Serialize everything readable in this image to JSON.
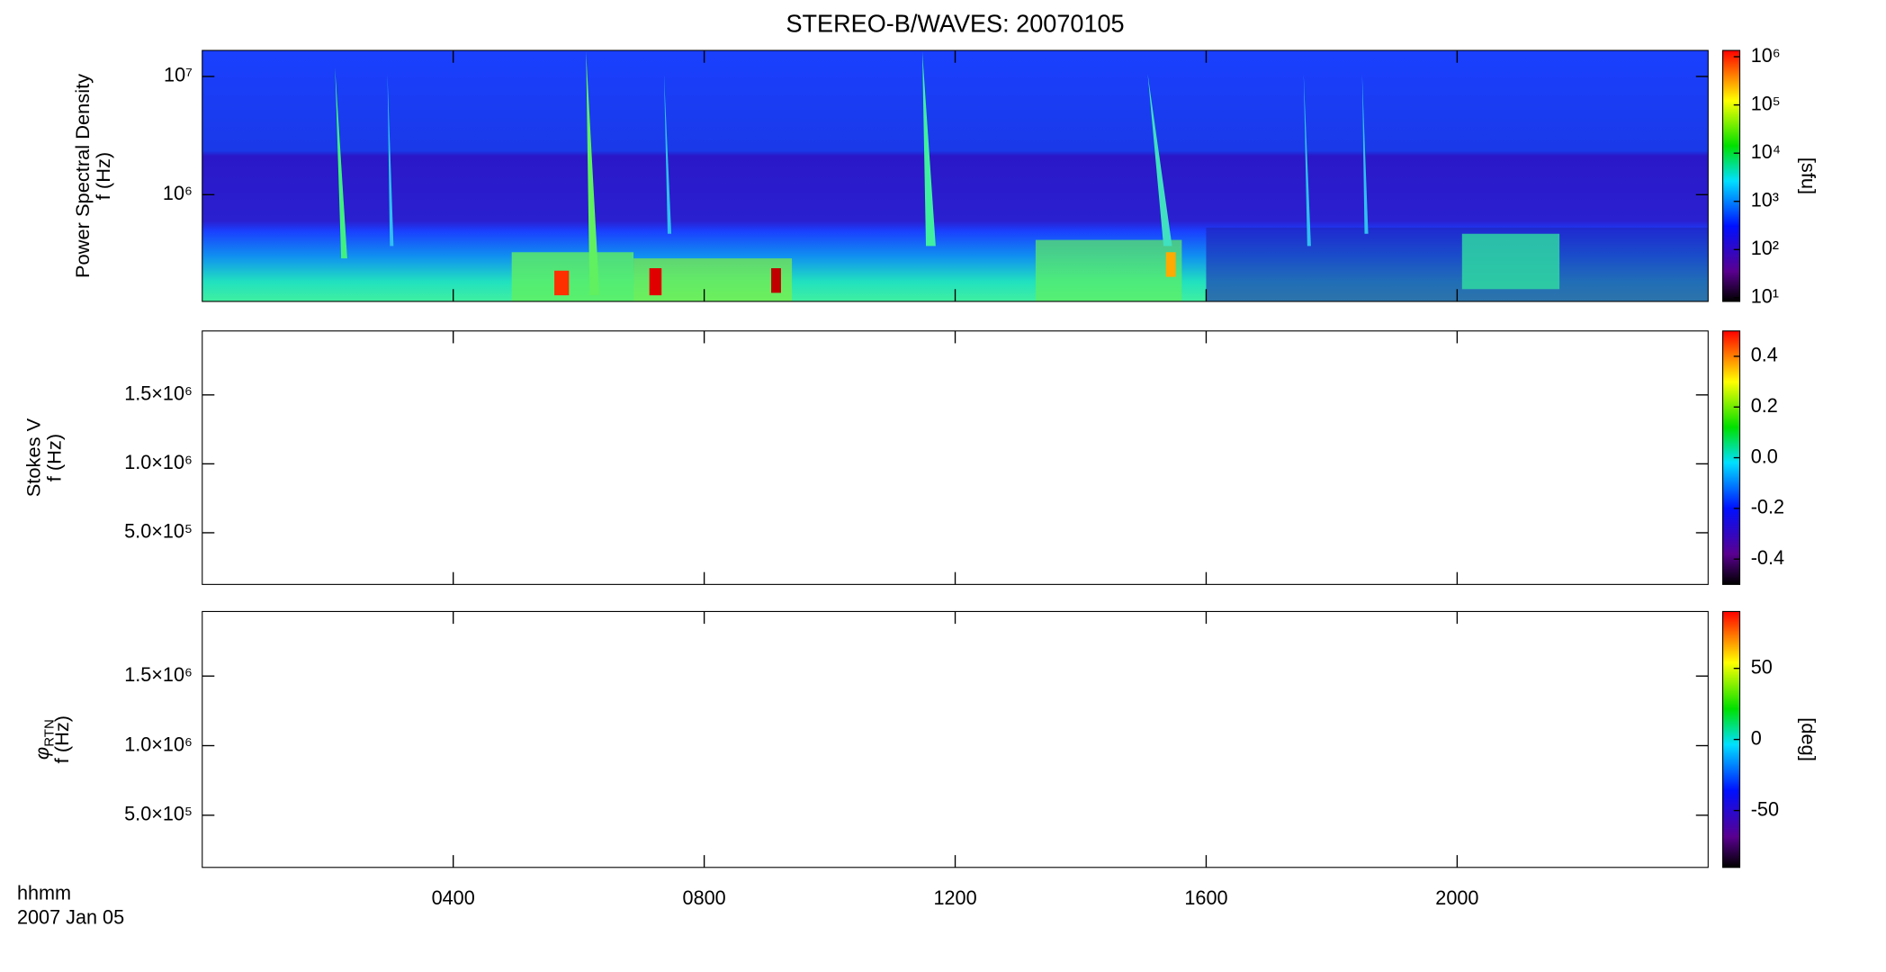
{
  "chart_data": [
    {
      "type": "heatmap",
      "title": "STEREO-B/WAVES: 20070105",
      "ylabel": [
        "Power Spectral Density",
        "f (Hz)"
      ],
      "ylog": true,
      "ylim": [
        125000,
        16600000
      ],
      "yticks": [
        {
          "value": 1000000,
          "label": "10⁶"
        },
        {
          "value": 10000000,
          "label": "10⁷"
        }
      ],
      "clog": true,
      "clim": [
        8.4,
        1350000
      ],
      "cticks": [
        {
          "value": 10,
          "label": "10¹"
        },
        {
          "value": 100,
          "label": "10²"
        },
        {
          "value": 1000,
          "label": "10³"
        },
        {
          "value": 10000,
          "label": "10⁴"
        },
        {
          "value": 100000,
          "label": "10⁵"
        },
        {
          "value": 1000000,
          "label": "10⁶"
        }
      ],
      "clabel": "[sfu]"
    },
    {
      "type": "heatmap",
      "ylabel": [
        "Stokes V",
        "f (Hz)"
      ],
      "ylog": false,
      "ylim": [
        125000,
        1964000
      ],
      "yticks": [
        {
          "value": 500000,
          "label": "5.0×10⁵"
        },
        {
          "value": 1000000,
          "label": "1.0×10⁶"
        },
        {
          "value": 1500000,
          "label": "1.5×10⁶"
        }
      ],
      "clog": false,
      "clim": [
        -0.5,
        0.5
      ],
      "cticks": [
        {
          "value": -0.4,
          "label": "-0.4"
        },
        -0.2,
        {
          "value": 0,
          "label": "0.0"
        },
        0.2,
        0.4
      ]
    },
    {
      "type": "heatmap",
      "ylabel_symbol": "φ",
      "ylabel_subscript": "RTN",
      "ylabel": [
        "f (Hz)"
      ],
      "ylog": false,
      "ylim": [
        125000,
        1964000
      ],
      "yticks": [
        {
          "value": 500000,
          "label": "5.0×10⁵"
        },
        {
          "value": 1000000,
          "label": "1.0×10⁶"
        },
        {
          "value": 1500000,
          "label": "1.5×10⁶"
        }
      ],
      "clog": false,
      "clim": [
        -90,
        90
      ],
      "cticks": [
        -50,
        0,
        50
      ],
      "clabel": "[deg]",
      "xlabel": [
        "hhmm",
        "2007 Jan 05"
      ],
      "xlim": [
        0,
        24
      ],
      "xticks": [
        {
          "value": 4,
          "label": "0400"
        },
        {
          "value": 8,
          "label": "0800"
        },
        {
          "value": 12,
          "label": "1200"
        },
        {
          "value": 16,
          "label": "1600"
        },
        {
          "value": 20,
          "label": "2000"
        }
      ]
    }
  ]
}
